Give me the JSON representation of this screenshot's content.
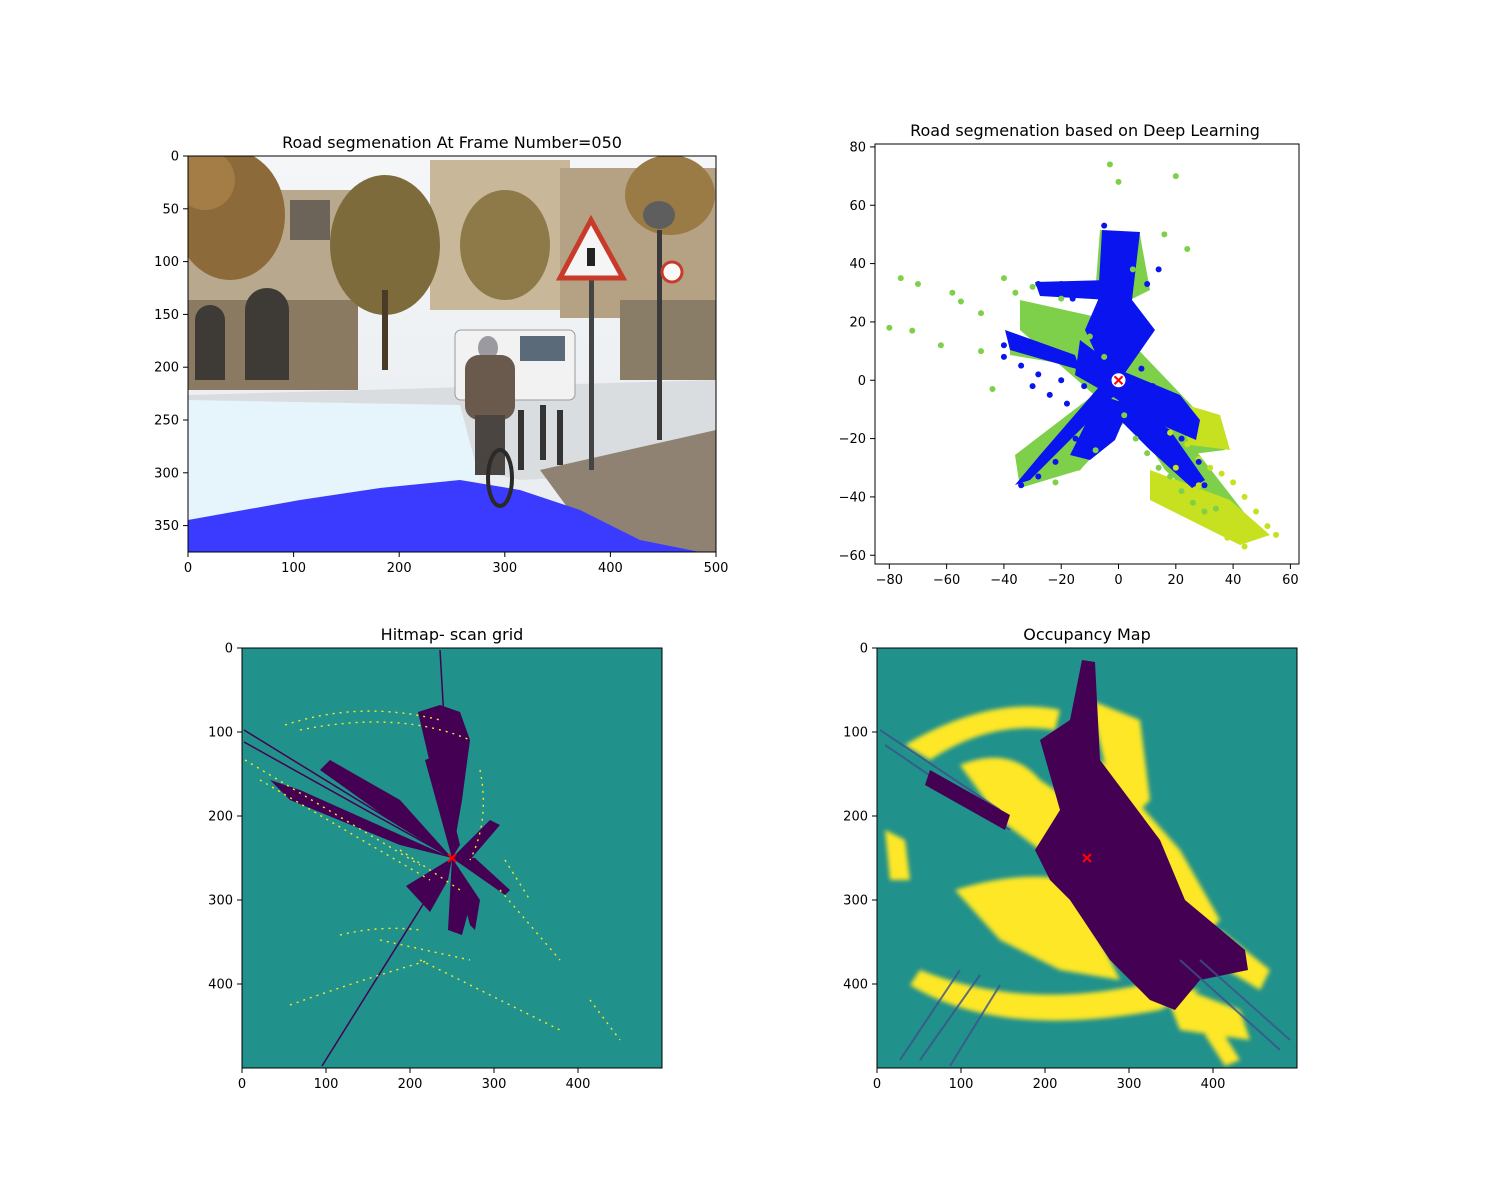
{
  "colors": {
    "viridis_low": "#440154",
    "viridis_mid": "#21918c",
    "viridis_high": "#fde725",
    "road_overlay": "#3b3bff",
    "road_points": "#0a14ee",
    "marker": "#ff0000"
  },
  "chart_data": [
    {
      "type": "image",
      "title": "Road segmenation At Frame Number=050",
      "description_items": [
        "street scene with cyclist",
        "road pixels highlighted in blue"
      ],
      "xlim": [
        0,
        500
      ],
      "ylim": [
        375,
        0
      ],
      "xticks": [
        0,
        100,
        200,
        300,
        400,
        500
      ],
      "yticks": [
        0,
        50,
        100,
        150,
        200,
        250,
        300,
        350
      ],
      "grid": false
    },
    {
      "type": "scatter",
      "title": "Road segmenation based on Deep Learning",
      "xlim": [
        -85,
        63
      ],
      "ylim": [
        -63,
        81
      ],
      "xticks": [
        -80,
        -60,
        -40,
        -20,
        0,
        20,
        40,
        60
      ],
      "yticks": [
        -60,
        -40,
        -20,
        0,
        20,
        40,
        60,
        80
      ],
      "grid": false,
      "series": [
        {
          "color": "#7ed04b",
          "points": [
            [
              -70,
              33
            ],
            [
              -72,
              17
            ],
            [
              -62,
              12
            ],
            [
              -55,
              27
            ],
            [
              -48,
              23
            ],
            [
              -40,
              35
            ],
            [
              -36,
              30
            ],
            [
              -30,
              32
            ],
            [
              -25,
              18
            ],
            [
              -20,
              28
            ],
            [
              -15,
              22
            ],
            [
              -10,
              15
            ],
            [
              -5,
              8
            ],
            [
              2,
              -12
            ],
            [
              6,
              -20
            ],
            [
              10,
              -25
            ],
            [
              14,
              -30
            ],
            [
              18,
              -33
            ],
            [
              22,
              -38
            ],
            [
              26,
              -42
            ],
            [
              -22,
              -35
            ],
            [
              -14,
              -30
            ],
            [
              -8,
              -24
            ],
            [
              -3,
              74
            ],
            [
              0,
              68
            ],
            [
              16,
              50
            ],
            [
              20,
              70
            ],
            [
              24,
              45
            ],
            [
              5,
              38
            ],
            [
              -44,
              -3
            ],
            [
              -48,
              10
            ],
            [
              -58,
              30
            ],
            [
              -76,
              35
            ],
            [
              -80,
              18
            ],
            [
              30,
              -45
            ],
            [
              34,
              -44
            ]
          ]
        },
        {
          "color": "#c7e020",
          "points": [
            [
              18,
              -18
            ],
            [
              24,
              -22
            ],
            [
              28,
              -27
            ],
            [
              32,
              -30
            ],
            [
              36,
              -32
            ],
            [
              40,
              -35
            ],
            [
              44,
              -40
            ],
            [
              48,
              -45
            ],
            [
              52,
              -50
            ],
            [
              55,
              -53
            ],
            [
              44,
              -57
            ],
            [
              38,
              -54
            ],
            [
              32,
              -50
            ],
            [
              26,
              -46
            ],
            [
              20,
              -30
            ],
            [
              28,
              -36
            ]
          ]
        },
        {
          "color": "#0a14ee",
          "points": [
            [
              -2,
              45
            ],
            [
              0,
              40
            ],
            [
              2,
              35
            ],
            [
              -3,
              30
            ],
            [
              3,
              25
            ],
            [
              -2,
              20
            ],
            [
              2,
              15
            ],
            [
              -1,
              10
            ],
            [
              1,
              5
            ],
            [
              0,
              0
            ],
            [
              -4,
              -3
            ],
            [
              4,
              -6
            ],
            [
              -6,
              -10
            ],
            [
              6,
              -12
            ],
            [
              -10,
              -15
            ],
            [
              10,
              -17
            ],
            [
              -15,
              -20
            ],
            [
              15,
              -22
            ],
            [
              -22,
              -28
            ],
            [
              -28,
              -33
            ],
            [
              -34,
              -36
            ],
            [
              20,
              -25
            ],
            [
              25,
              -30
            ],
            [
              30,
              -36
            ],
            [
              -12,
              33
            ],
            [
              -20,
              33
            ],
            [
              -28,
              33
            ],
            [
              10,
              33
            ],
            [
              14,
              38
            ],
            [
              -40,
              8
            ],
            [
              -34,
              5
            ],
            [
              -28,
              2
            ],
            [
              -20,
              0
            ],
            [
              -12,
              -2
            ],
            [
              -30,
              -2
            ],
            [
              -24,
              -5
            ],
            [
              -18,
              -8
            ],
            [
              8,
              4
            ],
            [
              12,
              -2
            ],
            [
              16,
              -6
            ],
            [
              22,
              -14
            ],
            [
              -5,
              53
            ],
            [
              2,
              49
            ],
            [
              -8,
              22
            ],
            [
              -16,
              28
            ],
            [
              22,
              -20
            ],
            [
              28,
              -28
            ],
            [
              -40,
              12
            ]
          ]
        },
        {
          "color": "#ff0000",
          "marker": "x",
          "points": [
            [
              0,
              0
            ]
          ]
        }
      ]
    },
    {
      "type": "heatmap",
      "title": "Hitmap- scan grid",
      "xlim": [
        0,
        500
      ],
      "ylim": [
        500,
        0
      ],
      "xticks": [
        0,
        100,
        200,
        300,
        400
      ],
      "yticks": [
        0,
        100,
        200,
        300,
        400
      ],
      "grid": false,
      "marker": {
        "x": 250,
        "y": 250,
        "color": "#ff0000"
      }
    },
    {
      "type": "heatmap",
      "title": "Occupancy Map",
      "xlim": [
        0,
        500
      ],
      "ylim": [
        500,
        0
      ],
      "xticks": [
        0,
        100,
        200,
        300,
        400
      ],
      "yticks": [
        0,
        100,
        200,
        300,
        400
      ],
      "grid": false,
      "marker": {
        "x": 250,
        "y": 250,
        "color": "#ff0000"
      }
    }
  ]
}
